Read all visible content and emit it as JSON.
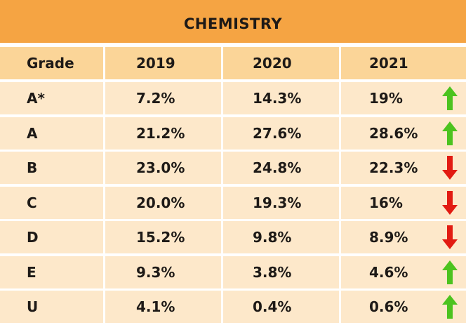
{
  "chart_data": {
    "type": "table",
    "title": "CHEMISTRY",
    "columns": [
      "Grade",
      "2019",
      "2020",
      "2021"
    ],
    "rows": [
      {
        "grade": "A*",
        "y2019": "7.2%",
        "y2020": "14.3%",
        "y2021": "19%",
        "trend": "up"
      },
      {
        "grade": "A",
        "y2019": "21.2%",
        "y2020": "27.6%",
        "y2021": "28.6%",
        "trend": "up"
      },
      {
        "grade": "B",
        "y2019": "23.0%",
        "y2020": "24.8%",
        "y2021": "22.3%",
        "trend": "down"
      },
      {
        "grade": "C",
        "y2019": "20.0%",
        "y2020": "19.3%",
        "y2021": "16%",
        "trend": "down"
      },
      {
        "grade": "D",
        "y2019": "15.2%",
        "y2020": "9.8%",
        "y2021": "8.9%",
        "trend": "down"
      },
      {
        "grade": "E",
        "y2019": "9.3%",
        "y2020": "3.8%",
        "y2021": "4.6%",
        "trend": "up"
      },
      {
        "grade": "U",
        "y2019": "4.1%",
        "y2020": "0.4%",
        "y2021": "0.6%",
        "trend": "up"
      }
    ]
  },
  "colors": {
    "title_bg": "#f5a443",
    "header_bg": "#fbd598",
    "row_bg": "#fde8ca",
    "text": "#1e1a17",
    "arrow_up": "#4cc31f",
    "arrow_down": "#e21b12"
  },
  "icons": {
    "up": "arrow-up-icon",
    "down": "arrow-down-icon"
  }
}
